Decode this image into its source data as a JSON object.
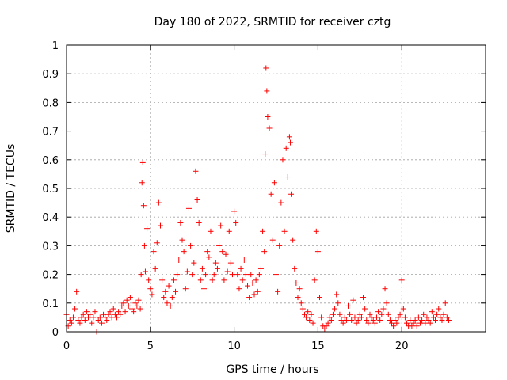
{
  "chart_data": {
    "type": "scatter",
    "title": "Day 180 of 2022, SRMTID for receiver cztg",
    "xlabel": "GPS time / hours",
    "ylabel": "SRMTID / TECUs",
    "xlim": [
      0,
      25
    ],
    "ylim": [
      0,
      1
    ],
    "xticks": [
      0,
      5,
      10,
      15,
      20
    ],
    "yticks": [
      0,
      0.1,
      0.2,
      0.3,
      0.4,
      0.5,
      0.6,
      0.7,
      0.8,
      0.9,
      1
    ],
    "xtick_labels": [
      "0",
      "5",
      "10",
      "15",
      "20"
    ],
    "ytick_labels": [
      "0",
      "0.1",
      "0.2",
      "0.3",
      "0.4",
      "0.5",
      "0.6",
      "0.7",
      "0.8",
      "0.9",
      "1"
    ],
    "grid": true,
    "marker": "+",
    "color": "#ff0000",
    "series": [
      {
        "name": "SRMTID",
        "x": [
          0.0,
          0.1,
          0.2,
          0.3,
          0.4,
          0.5,
          0.6,
          0.7,
          0.8,
          0.9,
          1.0,
          1.1,
          1.2,
          1.3,
          1.4,
          1.5,
          1.6,
          1.7,
          1.8,
          1.9,
          2.0,
          2.1,
          2.2,
          2.3,
          2.4,
          2.5,
          2.6,
          2.7,
          2.8,
          2.9,
          3.0,
          3.1,
          3.2,
          3.3,
          3.4,
          3.5,
          3.6,
          3.7,
          3.8,
          3.9,
          4.0,
          4.1,
          4.2,
          4.3,
          4.4,
          4.45,
          4.5,
          4.55,
          4.6,
          4.65,
          4.7,
          4.8,
          4.9,
          5.0,
          5.1,
          5.2,
          5.3,
          5.4,
          5.5,
          5.6,
          5.7,
          5.8,
          5.9,
          6.0,
          6.1,
          6.2,
          6.3,
          6.4,
          6.5,
          6.6,
          6.7,
          6.8,
          6.9,
          7.0,
          7.1,
          7.2,
          7.3,
          7.4,
          7.5,
          7.6,
          7.7,
          7.8,
          7.9,
          8.0,
          8.1,
          8.2,
          8.3,
          8.4,
          8.5,
          8.6,
          8.7,
          8.8,
          8.9,
          9.0,
          9.1,
          9.2,
          9.3,
          9.4,
          9.5,
          9.6,
          9.7,
          9.8,
          9.9,
          10.0,
          10.1,
          10.2,
          10.3,
          10.4,
          10.5,
          10.6,
          10.7,
          10.8,
          10.9,
          11.0,
          11.1,
          11.2,
          11.3,
          11.4,
          11.5,
          11.6,
          11.7,
          11.8,
          11.85,
          11.9,
          11.95,
          12.0,
          12.1,
          12.2,
          12.3,
          12.4,
          12.5,
          12.6,
          12.7,
          12.8,
          12.9,
          13.0,
          13.1,
          13.2,
          13.3,
          13.35,
          13.4,
          13.5,
          13.6,
          13.7,
          13.8,
          13.9,
          14.0,
          14.1,
          14.2,
          14.3,
          14.4,
          14.5,
          14.6,
          14.7,
          14.8,
          14.9,
          15.0,
          15.1,
          15.2,
          15.3,
          15.4,
          15.5,
          15.6,
          15.7,
          15.8,
          15.9,
          16.0,
          16.1,
          16.2,
          16.3,
          16.4,
          16.5,
          16.6,
          16.7,
          16.8,
          16.9,
          17.0,
          17.1,
          17.2,
          17.3,
          17.4,
          17.5,
          17.6,
          17.7,
          17.8,
          17.9,
          18.0,
          18.1,
          18.2,
          18.3,
          18.4,
          18.5,
          18.6,
          18.7,
          18.8,
          18.9,
          19.0,
          19.1,
          19.2,
          19.3,
          19.4,
          19.5,
          19.6,
          19.7,
          19.8,
          19.9,
          20.0,
          20.1,
          20.2,
          20.3,
          20.4,
          20.5,
          20.6,
          20.7,
          20.8,
          20.9,
          21.0,
          21.1,
          21.2,
          21.3,
          21.4,
          21.5,
          21.6,
          21.7,
          21.8,
          21.9,
          22.0,
          22.1,
          22.2,
          22.3,
          22.4,
          22.5,
          22.6,
          22.7,
          22.8
        ],
        "y": [
          0.06,
          0.02,
          0.04,
          0.03,
          0.05,
          0.08,
          0.14,
          0.04,
          0.03,
          0.05,
          0.06,
          0.04,
          0.07,
          0.05,
          0.06,
          0.03,
          0.05,
          0.07,
          0.0,
          0.04,
          0.05,
          0.03,
          0.06,
          0.05,
          0.04,
          0.06,
          0.07,
          0.05,
          0.08,
          0.06,
          0.05,
          0.07,
          0.06,
          0.09,
          0.1,
          0.07,
          0.11,
          0.09,
          0.12,
          0.08,
          0.07,
          0.1,
          0.09,
          0.11,
          0.08,
          0.2,
          0.52,
          0.59,
          0.44,
          0.3,
          0.21,
          0.36,
          0.18,
          0.15,
          0.13,
          0.28,
          0.22,
          0.31,
          0.45,
          0.37,
          0.18,
          0.12,
          0.14,
          0.1,
          0.16,
          0.09,
          0.12,
          0.18,
          0.14,
          0.2,
          0.25,
          0.38,
          0.32,
          0.28,
          0.15,
          0.21,
          0.43,
          0.3,
          0.2,
          0.24,
          0.56,
          0.46,
          0.38,
          0.18,
          0.22,
          0.15,
          0.2,
          0.28,
          0.26,
          0.35,
          0.18,
          0.2,
          0.24,
          0.22,
          0.3,
          0.37,
          0.28,
          0.18,
          0.27,
          0.21,
          0.35,
          0.24,
          0.2,
          0.42,
          0.38,
          0.2,
          0.15,
          0.22,
          0.18,
          0.25,
          0.2,
          0.16,
          0.12,
          0.2,
          0.17,
          0.13,
          0.18,
          0.14,
          0.2,
          0.22,
          0.35,
          0.28,
          0.62,
          0.92,
          0.84,
          0.75,
          0.71,
          0.48,
          0.32,
          0.52,
          0.2,
          0.14,
          0.3,
          0.45,
          0.6,
          0.35,
          0.64,
          0.54,
          0.68,
          0.66,
          0.48,
          0.32,
          0.22,
          0.17,
          0.12,
          0.15,
          0.1,
          0.08,
          0.06,
          0.05,
          0.07,
          0.04,
          0.06,
          0.03,
          0.18,
          0.35,
          0.28,
          0.12,
          0.05,
          0.02,
          0.01,
          0.02,
          0.03,
          0.05,
          0.04,
          0.06,
          0.08,
          0.13,
          0.1,
          0.06,
          0.04,
          0.03,
          0.05,
          0.04,
          0.09,
          0.06,
          0.04,
          0.11,
          0.05,
          0.03,
          0.04,
          0.06,
          0.05,
          0.12,
          0.08,
          0.04,
          0.03,
          0.06,
          0.05,
          0.04,
          0.03,
          0.05,
          0.07,
          0.04,
          0.06,
          0.08,
          0.15,
          0.1,
          0.06,
          0.04,
          0.03,
          0.02,
          0.04,
          0.03,
          0.05,
          0.06,
          0.18,
          0.08,
          0.05,
          0.03,
          0.02,
          0.04,
          0.02,
          0.03,
          0.04,
          0.02,
          0.05,
          0.03,
          0.04,
          0.06,
          0.03,
          0.05,
          0.04,
          0.03,
          0.07,
          0.05,
          0.04,
          0.06,
          0.08,
          0.05,
          0.04,
          0.06,
          0.1,
          0.05,
          0.04
        ]
      }
    ]
  }
}
